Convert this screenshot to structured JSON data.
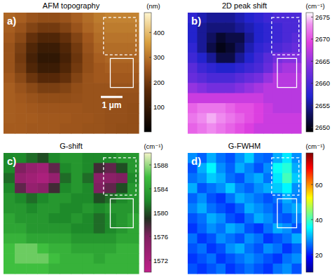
{
  "chart_data": [
    {
      "type": "heatmap",
      "title": "AFM topography",
      "annotations": [
        "a)",
        "1 μm"
      ],
      "colorbar_label": "(nm)",
      "colorbar_range": [
        0,
        480
      ],
      "colorbar_ticks": [
        100,
        200,
        300,
        400
      ],
      "cells": [
        [
          280,
          270,
          250,
          240,
          240,
          250,
          270,
          290,
          310,
          320,
          320,
          320
        ],
        [
          270,
          250,
          220,
          200,
          200,
          220,
          250,
          280,
          300,
          310,
          310,
          310
        ],
        [
          260,
          230,
          180,
          150,
          150,
          180,
          220,
          260,
          290,
          300,
          300,
          300
        ],
        [
          250,
          210,
          150,
          110,
          110,
          150,
          200,
          250,
          280,
          290,
          290,
          290
        ],
        [
          250,
          200,
          130,
          90,
          90,
          130,
          190,
          240,
          270,
          280,
          280,
          280
        ],
        [
          250,
          210,
          150,
          110,
          110,
          150,
          200,
          240,
          260,
          270,
          270,
          270
        ],
        [
          260,
          230,
          190,
          160,
          160,
          180,
          220,
          250,
          260,
          260,
          260,
          260
        ],
        [
          270,
          250,
          230,
          210,
          210,
          220,
          240,
          250,
          250,
          250,
          250,
          250
        ],
        [
          270,
          260,
          250,
          240,
          240,
          240,
          245,
          250,
          250,
          250,
          245,
          245
        ],
        [
          270,
          265,
          260,
          255,
          255,
          255,
          255,
          250,
          250,
          245,
          245,
          240
        ],
        [
          270,
          265,
          265,
          260,
          260,
          260,
          255,
          255,
          250,
          245,
          245,
          240
        ],
        [
          265,
          265,
          260,
          260,
          260,
          255,
          255,
          250,
          250,
          245,
          240,
          240
        ]
      ]
    },
    {
      "type": "heatmap",
      "title": "2D peak shift",
      "annotations": [
        "b)"
      ],
      "colorbar_label": "(cm⁻¹)",
      "colorbar_range": [
        2649,
        2676
      ],
      "colorbar_ticks": [
        2650,
        2655,
        2660,
        2665,
        2670,
        2675
      ],
      "cells": [
        [
          2658,
          2656,
          2655,
          2655,
          2655,
          2656,
          2657,
          2658,
          2659,
          2660,
          2660,
          2660
        ],
        [
          2657,
          2655,
          2654,
          2654,
          2654,
          2655,
          2656,
          2657,
          2658,
          2659,
          2660,
          2660
        ],
        [
          2657,
          2655,
          2653,
          2651,
          2652,
          2652,
          2655,
          2657,
          2658,
          2659,
          2660,
          2661
        ],
        [
          2658,
          2655,
          2652,
          2650,
          2651,
          2653,
          2656,
          2658,
          2659,
          2660,
          2661,
          2662
        ],
        [
          2659,
          2657,
          2655,
          2652,
          2652,
          2655,
          2657,
          2659,
          2661,
          2663,
          2664,
          2664
        ],
        [
          2661,
          2659,
          2658,
          2657,
          2657,
          2658,
          2659,
          2660,
          2662,
          2665,
          2666,
          2666
        ],
        [
          2662,
          2661,
          2660,
          2660,
          2660,
          2661,
          2662,
          2663,
          2665,
          2667,
          2667,
          2667
        ],
        [
          2665,
          2664,
          2663,
          2663,
          2663,
          2664,
          2665,
          2666,
          2667,
          2667,
          2667,
          2667
        ],
        [
          2668,
          2668,
          2668,
          2668,
          2668,
          2668,
          2668,
          2668,
          2667,
          2667,
          2667,
          2667
        ],
        [
          2671,
          2672,
          2672,
          2672,
          2671,
          2670,
          2670,
          2669,
          2668,
          2667,
          2667,
          2667
        ],
        [
          2672,
          2673,
          2674,
          2673,
          2672,
          2671,
          2670,
          2669,
          2668,
          2668,
          2668,
          2668
        ],
        [
          2671,
          2672,
          2673,
          2672,
          2671,
          2670,
          2669,
          2668,
          2668,
          2668,
          2668,
          2668
        ]
      ]
    },
    {
      "type": "heatmap",
      "title": "G-shift",
      "annotations": [
        "c)"
      ],
      "colorbar_label": "(cm⁻¹)",
      "colorbar_range": [
        1570,
        1590
      ],
      "colorbar_ticks": [
        1572,
        1576,
        1580,
        1584,
        1588
      ],
      "cells": [
        [
          1582,
          1582,
          1581,
          1580,
          1582,
          1583,
          1583,
          1582,
          1582,
          1582,
          1583,
          1583
        ],
        [
          1582,
          1576,
          1574,
          1573,
          1577,
          1582,
          1583,
          1582,
          1578,
          1577,
          1580,
          1583
        ],
        [
          1581,
          1574,
          1573,
          1572,
          1574,
          1581,
          1583,
          1581,
          1575,
          1575,
          1576,
          1582
        ],
        [
          1582,
          1577,
          1574,
          1575,
          1578,
          1582,
          1583,
          1582,
          1576,
          1577,
          1580,
          1583
        ],
        [
          1583,
          1582,
          1581,
          1582,
          1583,
          1583,
          1582,
          1582,
          1580,
          1581,
          1582,
          1583
        ],
        [
          1583,
          1583,
          1582,
          1583,
          1583,
          1582,
          1582,
          1583,
          1582,
          1583,
          1583,
          1583
        ],
        [
          1584,
          1583,
          1583,
          1583,
          1582,
          1582,
          1583,
          1582,
          1581,
          1582,
          1583,
          1584
        ],
        [
          1584,
          1584,
          1583,
          1583,
          1583,
          1583,
          1582,
          1582,
          1581,
          1582,
          1583,
          1584
        ],
        [
          1585,
          1585,
          1584,
          1584,
          1584,
          1584,
          1583,
          1583,
          1583,
          1583,
          1584,
          1584
        ],
        [
          1586,
          1587,
          1587,
          1586,
          1585,
          1585,
          1584,
          1584,
          1584,
          1584,
          1585,
          1585
        ],
        [
          1586,
          1587,
          1587,
          1587,
          1586,
          1585,
          1585,
          1585,
          1584,
          1585,
          1585,
          1585
        ],
        [
          1586,
          1586,
          1586,
          1586,
          1585,
          1585,
          1585,
          1585,
          1585,
          1585,
          1585,
          1585
        ]
      ]
    },
    {
      "type": "heatmap",
      "title": "G-FWHM",
      "annotations": [
        "d)"
      ],
      "colorbar_label": "(cm⁻¹)",
      "colorbar_range": [
        10,
        78
      ],
      "colorbar_ticks": [
        20,
        40,
        60
      ],
      "cells": [
        [
          28,
          25,
          30,
          26,
          24,
          28,
          32,
          26,
          25,
          30,
          34,
          28
        ],
        [
          24,
          30,
          35,
          28,
          25,
          30,
          27,
          24,
          28,
          36,
          38,
          30
        ],
        [
          26,
          28,
          32,
          30,
          26,
          24,
          28,
          30,
          26,
          34,
          40,
          32
        ],
        [
          30,
          24,
          26,
          28,
          32,
          27,
          25,
          28,
          30,
          32,
          35,
          28
        ],
        [
          25,
          28,
          24,
          22,
          26,
          30,
          28,
          26,
          24,
          26,
          30,
          27
        ],
        [
          27,
          30,
          26,
          24,
          22,
          25,
          30,
          28,
          26,
          24,
          28,
          30
        ],
        [
          24,
          26,
          30,
          28,
          24,
          22,
          26,
          30,
          28,
          25,
          24,
          27
        ],
        [
          22,
          25,
          28,
          26,
          30,
          28,
          24,
          22,
          26,
          30,
          28,
          24
        ],
        [
          26,
          22,
          24,
          28,
          26,
          24,
          28,
          26,
          22,
          24,
          26,
          30
        ],
        [
          24,
          26,
          22,
          24,
          28,
          30,
          26,
          24,
          28,
          26,
          22,
          25
        ],
        [
          22,
          24,
          26,
          22,
          24,
          26,
          28,
          26,
          24,
          22,
          26,
          28
        ],
        [
          24,
          22,
          24,
          26,
          22,
          24,
          26,
          24,
          22,
          26,
          28,
          24
        ]
      ]
    }
  ]
}
